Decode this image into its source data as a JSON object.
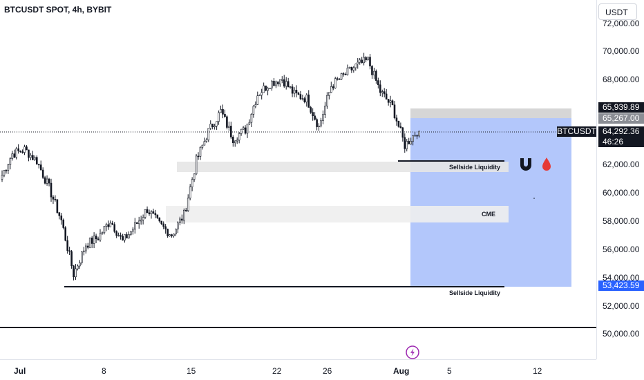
{
  "header": {
    "symbol_title": "BTCUSDT SPOT, 4h, BYBIT"
  },
  "currency_selector": {
    "label": "USDT"
  },
  "price_axis": {
    "ticks": [
      "72,000.00",
      "70,000.00",
      "68,000.00",
      "62,000.00",
      "60,000.00",
      "58,000.00",
      "56,000.00",
      "54,000.00",
      "52,000.00",
      "50,000.00"
    ]
  },
  "price_tags": {
    "target_high": "65,939.89",
    "target_low": "65,267.00",
    "symbol": "BTCUSDT",
    "last_price": "64,292.36",
    "countdown": "46:26",
    "stop_price": "53,423.59"
  },
  "time_axis": {
    "ticks": [
      "Jul",
      "8",
      "15",
      "22",
      "26",
      "Aug",
      "5",
      "12"
    ]
  },
  "annotations": {
    "sellside_upper": "Sellside Liquidity",
    "cme": "CME",
    "sellside_lower": "Sellside Liquidity"
  },
  "icons": {
    "magnet": "magnet-icon",
    "drop": "blood-drop-icon",
    "lightning": "lightning-icon"
  },
  "colors": {
    "up": "#ffffff",
    "down": "#131722",
    "position_zone": "#b3c7fb",
    "tag_blue": "#2962ff",
    "gray_zone": "#e5e5e5"
  },
  "chart_data": {
    "type": "candlestick",
    "x_range": [
      "Jun 29",
      "Aug 14"
    ],
    "y_range": [
      48500,
      72500
    ],
    "series": [
      {
        "name": "BTCUSDT",
        "anchor_points": [
          {
            "x": "Jun 29",
            "y": 60900
          },
          {
            "x": "Jun 30",
            "y": 62700
          },
          {
            "x": "Jul 1",
            "y": 63000
          },
          {
            "x": "Jul 2",
            "y": 62200
          },
          {
            "x": "Jul 3",
            "y": 60300
          },
          {
            "x": "Jul 4",
            "y": 58000
          },
          {
            "x": "Jul 5",
            "y": 54200
          },
          {
            "x": "Jul 6",
            "y": 56300
          },
          {
            "x": "Jul 7",
            "y": 56800
          },
          {
            "x": "Jul 8",
            "y": 58000
          },
          {
            "x": "Jul 9",
            "y": 56500
          },
          {
            "x": "Jul 10",
            "y": 57600
          },
          {
            "x": "Jul 11",
            "y": 58800
          },
          {
            "x": "Jul 12",
            "y": 57700
          },
          {
            "x": "Jul 13",
            "y": 57000
          },
          {
            "x": "Jul 14",
            "y": 58400
          },
          {
            "x": "Jul 15",
            "y": 62200
          },
          {
            "x": "Jul 16",
            "y": 64300
          },
          {
            "x": "Jul 17",
            "y": 65700
          },
          {
            "x": "Jul 18",
            "y": 63800
          },
          {
            "x": "Jul 19",
            "y": 64400
          },
          {
            "x": "Jul 20",
            "y": 66900
          },
          {
            "x": "Jul 21",
            "y": 67700
          },
          {
            "x": "Jul 22",
            "y": 68000
          },
          {
            "x": "Jul 23",
            "y": 66900
          },
          {
            "x": "Jul 24",
            "y": 66600
          },
          {
            "x": "Jul 25",
            "y": 64600
          },
          {
            "x": "Jul 26",
            "y": 67500
          },
          {
            "x": "Jul 27",
            "y": 68200
          },
          {
            "x": "Jul 28",
            "y": 68900
          },
          {
            "x": "Jul 29",
            "y": 69300
          },
          {
            "x": "Jul 30",
            "y": 67100
          },
          {
            "x": "Jul 31",
            "y": 66000
          },
          {
            "x": "Aug 1",
            "y": 63300
          },
          {
            "x": "Aug 1 20:00",
            "y": 64292
          }
        ]
      }
    ],
    "levels": [
      {
        "label": "Sellside Liquidity",
        "y": 62200
      },
      {
        "label": "Sellside Liquidity",
        "y": 53400
      }
    ],
    "zones": [
      {
        "label": "Sellside Liquidity",
        "y_range": [
          61400,
          62100
        ]
      },
      {
        "label": "CME",
        "y_range": [
          57900,
          59100
        ]
      }
    ],
    "position": {
      "entry": 65267,
      "target": 65939.89,
      "stop": 53423.59
    },
    "last_price": 64292.36
  }
}
